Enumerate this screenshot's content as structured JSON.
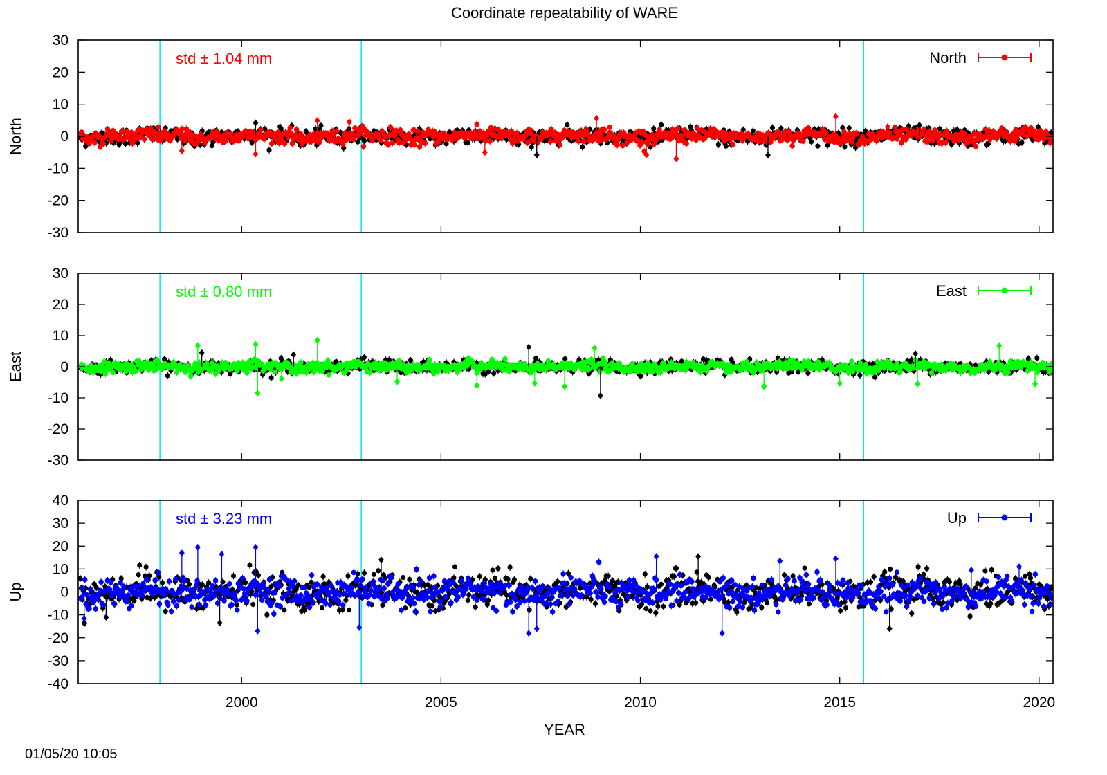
{
  "figure": {
    "title": "Coordinate repeatability of WARE",
    "xlabel": "YEAR",
    "timestamp": "01/05/20 10:05"
  },
  "colors": {
    "north": "#ff0000",
    "east": "#00ff00",
    "up": "#0000ff",
    "residual": "#000000",
    "event_line": "#00e5ff",
    "axis": "#000000"
  },
  "chart_data": [
    {
      "type": "scatter",
      "panel": "north",
      "ylabel": "North",
      "legend": "North",
      "std_label": "std ± 1.04 mm",
      "xlim": [
        1995.9,
        2020.35
      ],
      "ylim": [
        -30,
        30
      ],
      "yticks": [
        "30",
        "20",
        "10",
        "0",
        "-10",
        "-20",
        "-30"
      ],
      "ytick_values": [
        30,
        20,
        10,
        0,
        -10,
        -20,
        -30
      ],
      "event_lines_x": [
        1997.95,
        2003.0,
        2015.6
      ],
      "spread": 1.3,
      "spikes": [
        {
          "x": 2000.35,
          "y": -5.5
        },
        {
          "x": 2000.35,
          "y": 4.2
        },
        {
          "x": 2001.9,
          "y": 4.9
        },
        {
          "x": 2002.7,
          "y": 4.5
        },
        {
          "x": 2006.1,
          "y": -5.0
        },
        {
          "x": 2007.4,
          "y": -5.8
        },
        {
          "x": 2008.9,
          "y": 5.6
        },
        {
          "x": 2010.15,
          "y": -5.8
        },
        {
          "x": 2010.9,
          "y": -7.0
        },
        {
          "x": 2013.2,
          "y": -5.9
        },
        {
          "x": 2014.9,
          "y": 6.2
        },
        {
          "x": 1998.5,
          "y": -4.5
        },
        {
          "x": 2016.2,
          "y": 3.0
        },
        {
          "x": 2017.0,
          "y": 3.5
        }
      ],
      "legend_symbol": "dot-with-errorbar"
    },
    {
      "type": "scatter",
      "panel": "east",
      "ylabel": "East",
      "legend": "East",
      "std_label": "std ± 0.80 mm",
      "xlim": [
        1995.9,
        2020.35
      ],
      "ylim": [
        -30,
        30
      ],
      "yticks": [
        "30",
        "20",
        "10",
        "0",
        "-10",
        "-20",
        "-30"
      ],
      "ytick_values": [
        30,
        20,
        10,
        0,
        -10,
        -20,
        -30
      ],
      "event_lines_x": [
        1997.95,
        2003.0,
        2015.6
      ],
      "spread": 1.0,
      "spikes": [
        {
          "x": 1998.9,
          "y": 6.8
        },
        {
          "x": 1999.0,
          "y": 4.5
        },
        {
          "x": 2000.35,
          "y": 7.2
        },
        {
          "x": 2000.4,
          "y": -8.5
        },
        {
          "x": 2001.0,
          "y": -3.8
        },
        {
          "x": 2001.3,
          "y": 3.9
        },
        {
          "x": 2001.9,
          "y": 8.5
        },
        {
          "x": 2003.9,
          "y": -4.8
        },
        {
          "x": 2005.9,
          "y": -6.0
        },
        {
          "x": 2007.2,
          "y": 6.3
        },
        {
          "x": 2007.35,
          "y": -5.3
        },
        {
          "x": 2008.1,
          "y": -6.3
        },
        {
          "x": 2008.85,
          "y": 6.0
        },
        {
          "x": 2009.0,
          "y": -9.3
        },
        {
          "x": 2013.1,
          "y": -6.3
        },
        {
          "x": 2015.0,
          "y": -5.3
        },
        {
          "x": 2016.95,
          "y": -5.5
        },
        {
          "x": 2016.9,
          "y": 4.2
        },
        {
          "x": 2019.0,
          "y": 6.8
        },
        {
          "x": 2019.9,
          "y": -5.5
        }
      ],
      "legend_symbol": "dot-with-errorbar"
    },
    {
      "type": "scatter",
      "panel": "up",
      "ylabel": "Up",
      "legend": "Up",
      "std_label": "std ± 3.23 mm",
      "xlim": [
        1995.9,
        2020.35
      ],
      "ylim": [
        -40,
        40
      ],
      "yticks": [
        "40",
        "30",
        "20",
        "10",
        "0",
        "-10",
        "-20",
        "-30",
        "-40"
      ],
      "ytick_values": [
        40,
        30,
        20,
        10,
        0,
        -10,
        -20,
        -30,
        -40
      ],
      "xticks": [
        "2000",
        "2005",
        "2010",
        "2015",
        "2020"
      ],
      "xtick_values": [
        2000,
        2005,
        2010,
        2015,
        2020
      ],
      "event_lines_x": [
        1997.95,
        2003.0,
        2015.6
      ],
      "spread": 3.8,
      "spikes": [
        {
          "x": 1996.05,
          "y": -11.5
        },
        {
          "x": 1996.6,
          "y": -11.0
        },
        {
          "x": 1998.5,
          "y": 17.0
        },
        {
          "x": 1998.9,
          "y": 19.5
        },
        {
          "x": 1999.5,
          "y": 16.5
        },
        {
          "x": 1999.45,
          "y": -13.5
        },
        {
          "x": 2000.35,
          "y": 19.5
        },
        {
          "x": 2000.4,
          "y": -17.0
        },
        {
          "x": 2002.95,
          "y": -15.5
        },
        {
          "x": 2003.5,
          "y": 14.0
        },
        {
          "x": 2007.2,
          "y": -18.0
        },
        {
          "x": 2007.4,
          "y": -16.0
        },
        {
          "x": 2010.4,
          "y": 15.5
        },
        {
          "x": 2011.45,
          "y": 15.5
        },
        {
          "x": 2012.05,
          "y": -18.0
        },
        {
          "x": 2013.5,
          "y": 13.5
        },
        {
          "x": 2014.9,
          "y": 14.5
        },
        {
          "x": 2016.25,
          "y": -16.0
        },
        {
          "x": 2018.3,
          "y": 9.5
        },
        {
          "x": 2019.5,
          "y": 11.0
        }
      ],
      "legend_symbol": "dot-with-errorbar"
    }
  ]
}
